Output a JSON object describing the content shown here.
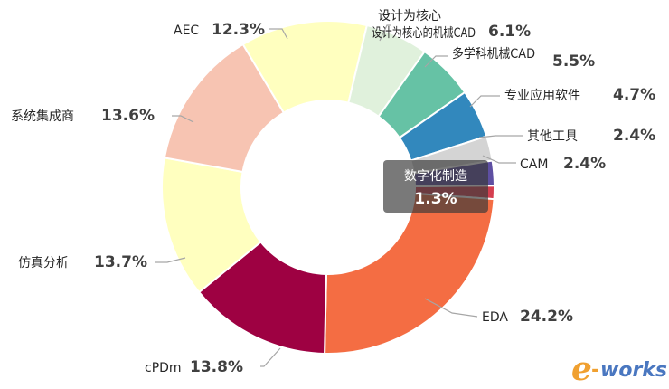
{
  "chart_data": {
    "type": "pie",
    "donut": true,
    "slices": [
      {
        "name": "EDA",
        "value": 24.2,
        "label": "24.2%",
        "color": "#f46d43"
      },
      {
        "name": "cPDm",
        "value": 13.8,
        "label": "13.8%",
        "color": "#9e0142"
      },
      {
        "name": "仿真分析",
        "value": 13.7,
        "label": "13.7%",
        "color": "#ffffbf"
      },
      {
        "name": "系统集成商",
        "value": 13.6,
        "label": "13.6%",
        "color": "#f7c4b2"
      },
      {
        "name": "AEC",
        "value": 12.3,
        "label": "12.3%",
        "color": "#ffffbf"
      },
      {
        "name": "设计为核心的机械CAD",
        "value": 6.1,
        "label": "6.1%",
        "color": "#e0f1dc"
      },
      {
        "name": "多学科机械CAD",
        "value": 5.5,
        "label": "5.5%",
        "color": "#66c2a5"
      },
      {
        "name": "专业应用软件",
        "value": 4.7,
        "label": "4.7%",
        "color": "#3288bd"
      },
      {
        "name": "其他工具",
        "value": 2.4,
        "label": "2.4%",
        "color": "#d4d4d4"
      },
      {
        "name": "CAM",
        "value": 2.4,
        "label": "2.4%",
        "color": "#5e4fa2"
      },
      {
        "name": "数字化制造",
        "value": 1.3,
        "label": "1.3%",
        "color": "#d53e4f"
      }
    ],
    "tooltip": {
      "name": "数字化制造",
      "value": "1.3%"
    }
  },
  "watermark": {
    "e": "e",
    "dash": "-",
    "works": "works"
  }
}
